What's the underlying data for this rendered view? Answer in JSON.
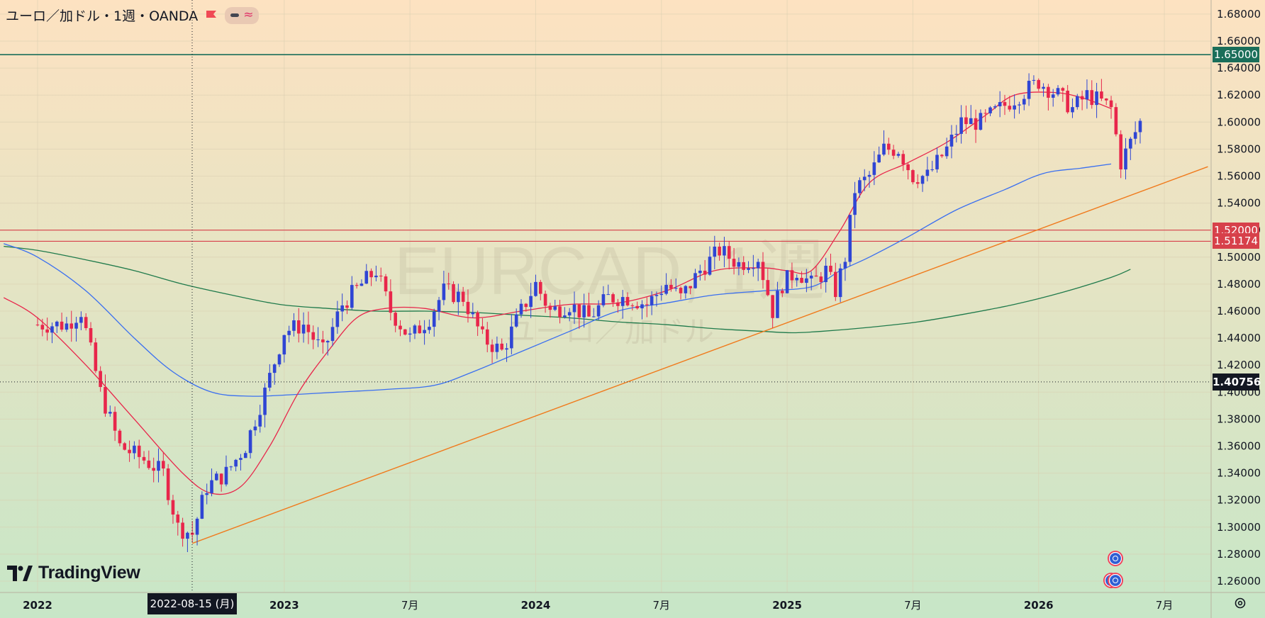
{
  "header": {
    "title": "ユーロ／加ドル・1週・OANDA"
  },
  "watermark": {
    "main": "EURCAD, 1週",
    "sub": "ユーロ／加ドル"
  },
  "branding": {
    "logo_text": "TradingView"
  },
  "crosshair": {
    "date_label": "2022-08-15 (月)",
    "price_label": "1.40756",
    "price": 1.40756
  },
  "colors": {
    "bg_top": "#fde2c1",
    "bg_bottom": "#c7e6c7",
    "bull": "#2f45d4",
    "bear": "#e8264b",
    "ma_fast": "#e8264b",
    "ma_mid": "#3a6ff0",
    "ma_slow": "#1f7a4b",
    "trendline": "#f07a1c",
    "h_line_green": "#1a6e5a",
    "h_line_red": "#d7404a"
  },
  "chart_data": {
    "type": "candlestick",
    "symbol": "ユーロ／加ドル",
    "timeframe": "1週",
    "source": "OANDA",
    "ylim": [
      1.25,
      1.69
    ],
    "y_ticks": [
      "1.26000",
      "1.28000",
      "1.30000",
      "1.32000",
      "1.34000",
      "1.36000",
      "1.38000",
      "1.40000",
      "1.42000",
      "1.44000",
      "1.46000",
      "1.48000",
      "1.50000",
      "1.52000",
      "1.54000",
      "1.56000",
      "1.58000",
      "1.60000",
      "1.62000",
      "1.64000",
      "1.66000",
      "1.68000"
    ],
    "x_labels": [
      {
        "label": "2022",
        "week": 0
      },
      {
        "label": "2023",
        "week": 51
      },
      {
        "label": "7月",
        "week": 77
      },
      {
        "label": "2024",
        "week": 103
      },
      {
        "label": "7月",
        "week": 129
      },
      {
        "label": "2025",
        "week": 155
      },
      {
        "label": "7月",
        "week": 181
      },
      {
        "label": "2026",
        "week": 207
      },
      {
        "label": "7月",
        "week": 233
      }
    ],
    "horizontal_lines": [
      {
        "price": 1.65,
        "label": "1.65000",
        "color": "green"
      },
      {
        "price": 1.52,
        "label": "1.52000",
        "color": "red"
      },
      {
        "price": 1.51174,
        "label": "1.51174",
        "color": "red"
      }
    ],
    "trendline": {
      "x1": 32,
      "y1": 1.288,
      "x2": 242,
      "y2": 1.567
    },
    "ma_fast_points": [
      [
        -7,
        1.47
      ],
      [
        0,
        1.455
      ],
      [
        10,
        1.42
      ],
      [
        20,
        1.38
      ],
      [
        30,
        1.34
      ],
      [
        36,
        1.325
      ],
      [
        42,
        1.33
      ],
      [
        48,
        1.36
      ],
      [
        54,
        1.4
      ],
      [
        60,
        1.43
      ],
      [
        66,
        1.455
      ],
      [
        72,
        1.462
      ],
      [
        80,
        1.462
      ],
      [
        90,
        1.455
      ],
      [
        100,
        1.46
      ],
      [
        110,
        1.465
      ],
      [
        120,
        1.466
      ],
      [
        130,
        1.475
      ],
      [
        140,
        1.49
      ],
      [
        150,
        1.492
      ],
      [
        155,
        1.49
      ],
      [
        160,
        1.49
      ],
      [
        166,
        1.52
      ],
      [
        172,
        1.555
      ],
      [
        180,
        1.57
      ],
      [
        188,
        1.585
      ],
      [
        196,
        1.605
      ],
      [
        202,
        1.62
      ],
      [
        210,
        1.622
      ],
      [
        216,
        1.618
      ],
      [
        222,
        1.61
      ]
    ],
    "ma_mid_points": [
      [
        -7,
        1.51
      ],
      [
        0,
        1.5
      ],
      [
        10,
        1.475
      ],
      [
        20,
        1.44
      ],
      [
        28,
        1.415
      ],
      [
        36,
        1.4
      ],
      [
        44,
        1.397
      ],
      [
        52,
        1.398
      ],
      [
        62,
        1.4
      ],
      [
        72,
        1.402
      ],
      [
        82,
        1.405
      ],
      [
        90,
        1.415
      ],
      [
        100,
        1.43
      ],
      [
        110,
        1.445
      ],
      [
        120,
        1.46
      ],
      [
        130,
        1.466
      ],
      [
        140,
        1.472
      ],
      [
        150,
        1.475
      ],
      [
        160,
        1.478
      ],
      [
        166,
        1.49
      ],
      [
        172,
        1.5
      ],
      [
        180,
        1.515
      ],
      [
        190,
        1.535
      ],
      [
        200,
        1.55
      ],
      [
        208,
        1.562
      ],
      [
        216,
        1.566
      ],
      [
        222,
        1.569
      ]
    ],
    "ma_slow_points": [
      [
        -7,
        1.508
      ],
      [
        0,
        1.505
      ],
      [
        10,
        1.498
      ],
      [
        20,
        1.49
      ],
      [
        30,
        1.48
      ],
      [
        40,
        1.472
      ],
      [
        50,
        1.465
      ],
      [
        60,
        1.462
      ],
      [
        70,
        1.46
      ],
      [
        80,
        1.46
      ],
      [
        90,
        1.459
      ],
      [
        100,
        1.457
      ],
      [
        110,
        1.455
      ],
      [
        120,
        1.452
      ],
      [
        130,
        1.45
      ],
      [
        140,
        1.447
      ],
      [
        150,
        1.445
      ],
      [
        156,
        1.444
      ],
      [
        162,
        1.445
      ],
      [
        172,
        1.448
      ],
      [
        182,
        1.452
      ],
      [
        192,
        1.458
      ],
      [
        202,
        1.465
      ],
      [
        212,
        1.474
      ],
      [
        222,
        1.485
      ],
      [
        226,
        1.491
      ]
    ],
    "anchors": [
      [
        0,
        1.45
      ],
      [
        6,
        1.45
      ],
      [
        9,
        1.46
      ],
      [
        13,
        1.4
      ],
      [
        17,
        1.36
      ],
      [
        22,
        1.35
      ],
      [
        26,
        1.34
      ],
      [
        29,
        1.3
      ],
      [
        32,
        1.295
      ],
      [
        35,
        1.33
      ],
      [
        39,
        1.34
      ],
      [
        43,
        1.36
      ],
      [
        47,
        1.4
      ],
      [
        51,
        1.445
      ],
      [
        55,
        1.45
      ],
      [
        59,
        1.43
      ],
      [
        63,
        1.465
      ],
      [
        67,
        1.48
      ],
      [
        70,
        1.49
      ],
      [
        73,
        1.46
      ],
      [
        77,
        1.44
      ],
      [
        81,
        1.455
      ],
      [
        84,
        1.475
      ],
      [
        88,
        1.47
      ],
      [
        92,
        1.44
      ],
      [
        96,
        1.43
      ],
      [
        100,
        1.46
      ],
      [
        103,
        1.48
      ],
      [
        106,
        1.46
      ],
      [
        110,
        1.465
      ],
      [
        114,
        1.455
      ],
      [
        118,
        1.47
      ],
      [
        122,
        1.47
      ],
      [
        126,
        1.465
      ],
      [
        130,
        1.48
      ],
      [
        133,
        1.47
      ],
      [
        137,
        1.49
      ],
      [
        141,
        1.505
      ],
      [
        145,
        1.495
      ],
      [
        149,
        1.5
      ],
      [
        152,
        1.46
      ],
      [
        154,
        1.48
      ],
      [
        157,
        1.49
      ],
      [
        160,
        1.48
      ],
      [
        163,
        1.49
      ],
      [
        165,
        1.475
      ],
      [
        167,
        1.5
      ],
      [
        169,
        1.55
      ],
      [
        172,
        1.56
      ],
      [
        175,
        1.58
      ],
      [
        178,
        1.58
      ],
      [
        181,
        1.56
      ],
      [
        184,
        1.56
      ],
      [
        188,
        1.58
      ],
      [
        191,
        1.6
      ],
      [
        195,
        1.6
      ],
      [
        199,
        1.61
      ],
      [
        203,
        1.62
      ],
      [
        207,
        1.63
      ],
      [
        211,
        1.62
      ],
      [
        214,
        1.61
      ],
      [
        217,
        1.62
      ],
      [
        220,
        1.615
      ],
      [
        222,
        1.61
      ],
      [
        224,
        1.57
      ],
      [
        226,
        1.585
      ],
      [
        228,
        1.6
      ]
    ],
    "x_range_weeks": [
      -7,
      246
    ]
  }
}
